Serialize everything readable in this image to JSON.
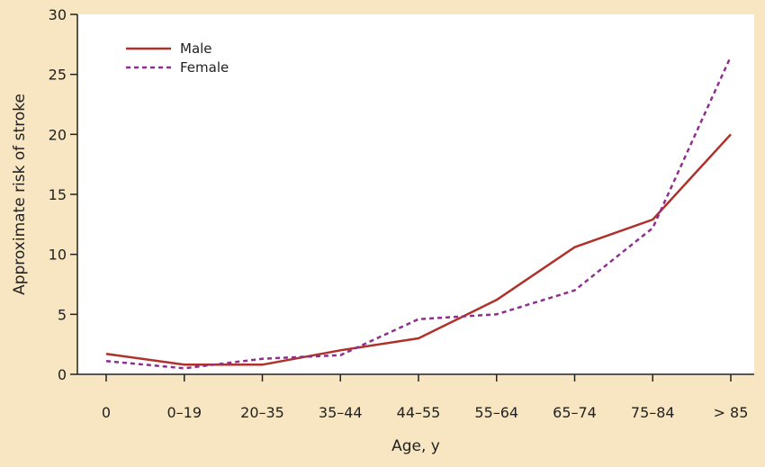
{
  "chart_data": {
    "type": "line",
    "categories": [
      "0",
      "0–19",
      "20–35",
      "35–44",
      "44–55",
      "55–64",
      "65–74",
      "75–84",
      "> 85"
    ],
    "series": [
      {
        "name": "Male",
        "values": [
          1.7,
          0.8,
          0.8,
          2.0,
          3.0,
          6.2,
          10.6,
          12.9,
          20.0
        ]
      },
      {
        "name": "Female",
        "values": [
          1.1,
          0.5,
          1.3,
          1.6,
          4.6,
          5.0,
          7.0,
          12.2,
          26.5
        ]
      }
    ],
    "xlabel": "Age, y",
    "ylabel": "Approximate risk of stroke",
    "ylim": [
      0,
      30
    ],
    "yticks": [
      "0",
      "5",
      "10",
      "15",
      "20",
      "25",
      "30"
    ],
    "legend_position": "top-left",
    "grid": false,
    "colors": {
      "Male": "#b0302a",
      "Female": "#8e2f8e",
      "background": "#f8e6c3",
      "plot": "#ffffff"
    }
  }
}
